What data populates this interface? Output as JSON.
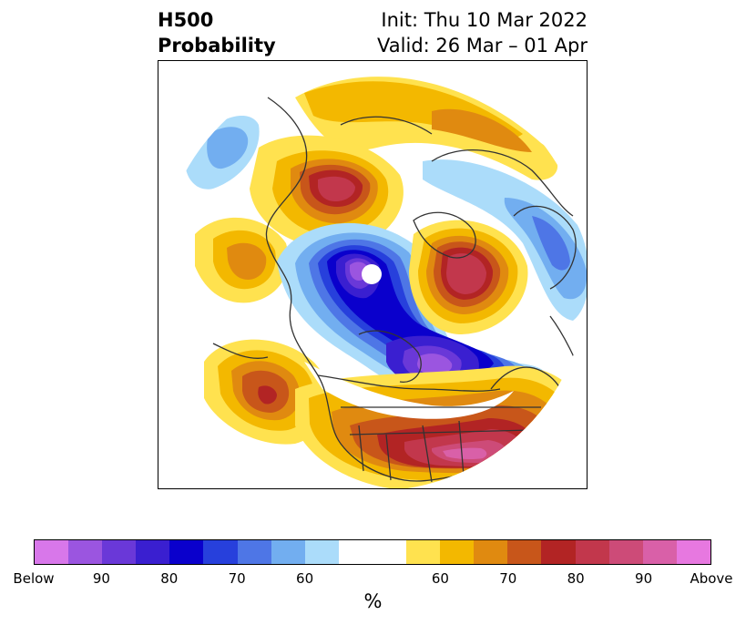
{
  "title": {
    "left_line1": "H500",
    "left_line2": "Probability",
    "init": "Init: Thu 10 Mar 2022",
    "valid": "Valid: 26 Mar – 01 Apr"
  },
  "colorbar": {
    "colors": [
      "#d877ea",
      "#9b55e0",
      "#6a38d8",
      "#3a1fd0",
      "#0a00cc",
      "#2740dc",
      "#4e76e6",
      "#72aef0",
      "#abdcfa",
      "#ffffff",
      "#ffe24f",
      "#f3b800",
      "#e08a10",
      "#c8561a",
      "#b22424",
      "#c2374c",
      "#cd4b78",
      "#d960a8",
      "#e778e0"
    ],
    "tick_labels": [
      "Below",
      "90",
      "80",
      "70",
      "60",
      "",
      "60",
      "70",
      "80",
      "90",
      "Above"
    ],
    "unit": "%"
  }
}
